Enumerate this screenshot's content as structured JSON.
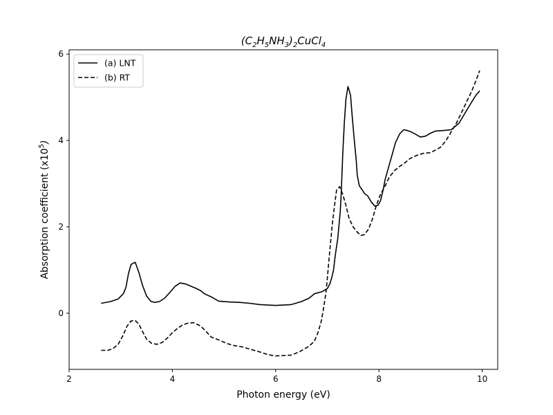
{
  "chart_data": {
    "type": "line",
    "title": {
      "parts": [
        {
          "t": "(C"
        },
        {
          "t": "2",
          "sub": true
        },
        {
          "t": "H"
        },
        {
          "t": "5",
          "sub": true
        },
        {
          "t": "NH"
        },
        {
          "t": "3",
          "sub": true
        },
        {
          "t": ")"
        },
        {
          "t": "2",
          "sub": true
        },
        {
          "t": "CuCl"
        },
        {
          "t": "4",
          "sub": true
        }
      ]
    },
    "xlabel": "Photon energy (eV)",
    "ylabel": {
      "parts": [
        {
          "t": "Absorption coefficient (x10",
          "italic": false
        },
        {
          "t": "5",
          "sup": true
        },
        {
          "t": ")",
          "italic": true
        }
      ]
    },
    "xlim": [
      2.0,
      10.3
    ],
    "ylim": [
      -1.3,
      6.1
    ],
    "xticks": [
      2,
      4,
      6,
      8,
      10
    ],
    "yticks": [
      0,
      2,
      4,
      6
    ],
    "grid": false,
    "legend_position": "top-left",
    "line_color": "#000000",
    "series": [
      {
        "name": "(a) LNT",
        "style": "solid",
        "points": [
          [
            2.62,
            0.23
          ],
          [
            2.8,
            0.27
          ],
          [
            2.95,
            0.33
          ],
          [
            3.05,
            0.45
          ],
          [
            3.1,
            0.6
          ],
          [
            3.15,
            0.92
          ],
          [
            3.2,
            1.13
          ],
          [
            3.28,
            1.18
          ],
          [
            3.35,
            0.95
          ],
          [
            3.42,
            0.65
          ],
          [
            3.5,
            0.4
          ],
          [
            3.58,
            0.28
          ],
          [
            3.65,
            0.25
          ],
          [
            3.75,
            0.27
          ],
          [
            3.85,
            0.35
          ],
          [
            3.95,
            0.48
          ],
          [
            4.05,
            0.62
          ],
          [
            4.15,
            0.7
          ],
          [
            4.25,
            0.68
          ],
          [
            4.35,
            0.63
          ],
          [
            4.45,
            0.58
          ],
          [
            4.55,
            0.52
          ],
          [
            4.62,
            0.45
          ],
          [
            4.75,
            0.38
          ],
          [
            4.9,
            0.28
          ],
          [
            5.1,
            0.26
          ],
          [
            5.3,
            0.25
          ],
          [
            5.5,
            0.23
          ],
          [
            5.7,
            0.2
          ],
          [
            6.0,
            0.18
          ],
          [
            6.3,
            0.2
          ],
          [
            6.5,
            0.27
          ],
          [
            6.65,
            0.35
          ],
          [
            6.75,
            0.45
          ],
          [
            6.9,
            0.5
          ],
          [
            7.0,
            0.57
          ],
          [
            7.05,
            0.68
          ],
          [
            7.08,
            0.8
          ],
          [
            7.12,
            1.0
          ],
          [
            7.15,
            1.3
          ],
          [
            7.18,
            1.55
          ],
          [
            7.2,
            1.7
          ],
          [
            7.22,
            1.95
          ],
          [
            7.25,
            2.35
          ],
          [
            7.27,
            2.8
          ],
          [
            7.3,
            3.7
          ],
          [
            7.33,
            4.4
          ],
          [
            7.36,
            4.95
          ],
          [
            7.4,
            5.25
          ],
          [
            7.45,
            5.05
          ],
          [
            7.48,
            4.6
          ],
          [
            7.52,
            4.05
          ],
          [
            7.56,
            3.55
          ],
          [
            7.58,
            3.2
          ],
          [
            7.62,
            2.95
          ],
          [
            7.68,
            2.85
          ],
          [
            7.72,
            2.77
          ],
          [
            7.78,
            2.72
          ],
          [
            7.85,
            2.58
          ],
          [
            7.92,
            2.48
          ],
          [
            7.98,
            2.5
          ],
          [
            8.03,
            2.6
          ],
          [
            8.08,
            2.85
          ],
          [
            8.12,
            3.1
          ],
          [
            8.18,
            3.35
          ],
          [
            8.25,
            3.65
          ],
          [
            8.32,
            3.95
          ],
          [
            8.4,
            4.15
          ],
          [
            8.48,
            4.25
          ],
          [
            8.55,
            4.23
          ],
          [
            8.62,
            4.2
          ],
          [
            8.7,
            4.15
          ],
          [
            8.8,
            4.08
          ],
          [
            8.9,
            4.1
          ],
          [
            9.0,
            4.17
          ],
          [
            9.1,
            4.22
          ],
          [
            9.25,
            4.23
          ],
          [
            9.4,
            4.25
          ],
          [
            9.55,
            4.4
          ],
          [
            9.7,
            4.7
          ],
          [
            9.8,
            4.9
          ],
          [
            9.88,
            5.05
          ],
          [
            9.95,
            5.15
          ]
        ]
      },
      {
        "name": "(b) RT",
        "style": "dashed",
        "points": [
          [
            2.62,
            -0.86
          ],
          [
            2.75,
            -0.86
          ],
          [
            2.85,
            -0.82
          ],
          [
            2.95,
            -0.72
          ],
          [
            3.05,
            -0.5
          ],
          [
            3.12,
            -0.3
          ],
          [
            3.2,
            -0.18
          ],
          [
            3.28,
            -0.17
          ],
          [
            3.35,
            -0.25
          ],
          [
            3.42,
            -0.42
          ],
          [
            3.5,
            -0.6
          ],
          [
            3.6,
            -0.7
          ],
          [
            3.7,
            -0.72
          ],
          [
            3.8,
            -0.68
          ],
          [
            3.9,
            -0.58
          ],
          [
            4.0,
            -0.45
          ],
          [
            4.1,
            -0.35
          ],
          [
            4.2,
            -0.27
          ],
          [
            4.3,
            -0.23
          ],
          [
            4.42,
            -0.22
          ],
          [
            4.55,
            -0.3
          ],
          [
            4.65,
            -0.42
          ],
          [
            4.75,
            -0.55
          ],
          [
            4.9,
            -0.62
          ],
          [
            5.05,
            -0.7
          ],
          [
            5.2,
            -0.75
          ],
          [
            5.35,
            -0.78
          ],
          [
            5.5,
            -0.83
          ],
          [
            5.7,
            -0.9
          ],
          [
            5.85,
            -0.96
          ],
          [
            6.0,
            -0.99
          ],
          [
            6.15,
            -0.98
          ],
          [
            6.3,
            -0.97
          ],
          [
            6.45,
            -0.9
          ],
          [
            6.55,
            -0.83
          ],
          [
            6.65,
            -0.76
          ],
          [
            6.75,
            -0.65
          ],
          [
            6.82,
            -0.45
          ],
          [
            6.88,
            -0.2
          ],
          [
            6.92,
            0.05
          ],
          [
            6.97,
            0.45
          ],
          [
            7.0,
            0.8
          ],
          [
            7.03,
            1.2
          ],
          [
            7.06,
            1.6
          ],
          [
            7.1,
            2.1
          ],
          [
            7.14,
            2.5
          ],
          [
            7.18,
            2.85
          ],
          [
            7.24,
            2.93
          ],
          [
            7.3,
            2.75
          ],
          [
            7.36,
            2.5
          ],
          [
            7.42,
            2.2
          ],
          [
            7.5,
            2.0
          ],
          [
            7.58,
            1.88
          ],
          [
            7.65,
            1.8
          ],
          [
            7.72,
            1.82
          ],
          [
            7.8,
            1.95
          ],
          [
            7.88,
            2.2
          ],
          [
            7.95,
            2.5
          ],
          [
            8.03,
            2.75
          ],
          [
            8.12,
            2.95
          ],
          [
            8.2,
            3.15
          ],
          [
            8.3,
            3.3
          ],
          [
            8.4,
            3.4
          ],
          [
            8.5,
            3.48
          ],
          [
            8.6,
            3.58
          ],
          [
            8.72,
            3.65
          ],
          [
            8.85,
            3.7
          ],
          [
            9.0,
            3.72
          ],
          [
            9.1,
            3.78
          ],
          [
            9.2,
            3.85
          ],
          [
            9.3,
            4.0
          ],
          [
            9.4,
            4.2
          ],
          [
            9.5,
            4.4
          ],
          [
            9.6,
            4.65
          ],
          [
            9.7,
            4.9
          ],
          [
            9.8,
            5.15
          ],
          [
            9.9,
            5.45
          ],
          [
            9.95,
            5.62
          ]
        ]
      }
    ]
  }
}
